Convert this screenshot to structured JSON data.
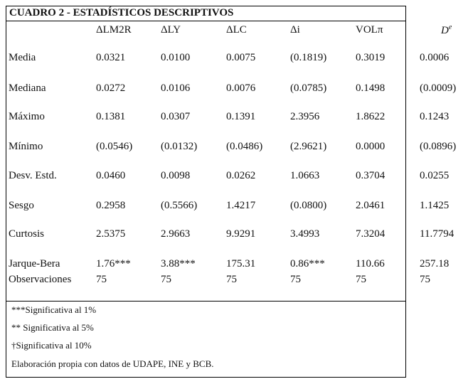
{
  "title": "CUADRO 2 - ESTADÍSTICOS DESCRIPTIVOS",
  "table": {
    "headers": [
      "ΔLM2R",
      "ΔLY",
      "ΔLC",
      "Δi",
      "VOLπ",
      {
        "base": "D",
        "sup": "e"
      }
    ],
    "rows": [
      {
        "label": "Media",
        "values": [
          "0.0321",
          "0.0100",
          "0.0075",
          "(0.1819)",
          "0.3019",
          "0.0006"
        ]
      },
      {
        "label": "Mediana",
        "values": [
          "0.0272",
          "0.0106",
          "0.0076",
          "(0.0785)",
          "0.1498",
          "(0.0009)"
        ]
      },
      {
        "label": "Máximo",
        "values": [
          "0.1381",
          "0.0307",
          "0.1391",
          "2.3956",
          "1.8622",
          "0.1243"
        ]
      },
      {
        "label": "Mínimo",
        "values": [
          "(0.0546)",
          "(0.0132)",
          "(0.0486)",
          "(2.9621)",
          "0.0000",
          "(0.0896)"
        ]
      },
      {
        "label": "Desv. Estd.",
        "values": [
          "0.0460",
          "0.0098",
          "0.0262",
          "1.0663",
          "0.3704",
          "0.0255"
        ]
      },
      {
        "label": "Sesgo",
        "values": [
          "0.2958",
          "(0.5566)",
          "1.4217",
          "(0.0800)",
          "2.0461",
          "1.1425"
        ]
      },
      {
        "label": "Curtosis",
        "values": [
          "2.5375",
          "2.9663",
          "9.9291",
          "3.4993",
          "7.3204",
          "11.7794"
        ]
      },
      {
        "label": "Jarque-Bera",
        "values": [
          "1.76***",
          "3.88***",
          "175.31",
          "0.86***",
          "110.66",
          "257.18"
        ]
      },
      {
        "label": "Observaciones",
        "values": [
          "75",
          "75",
          "75",
          "75",
          "75",
          "75"
        ]
      }
    ]
  },
  "notes": [
    "***Significativa al 1%",
    "** Significativa al 5%",
    "†Significativa al 10%",
    "Elaboración  propia con datos de UDAPE, INE y BCB."
  ]
}
